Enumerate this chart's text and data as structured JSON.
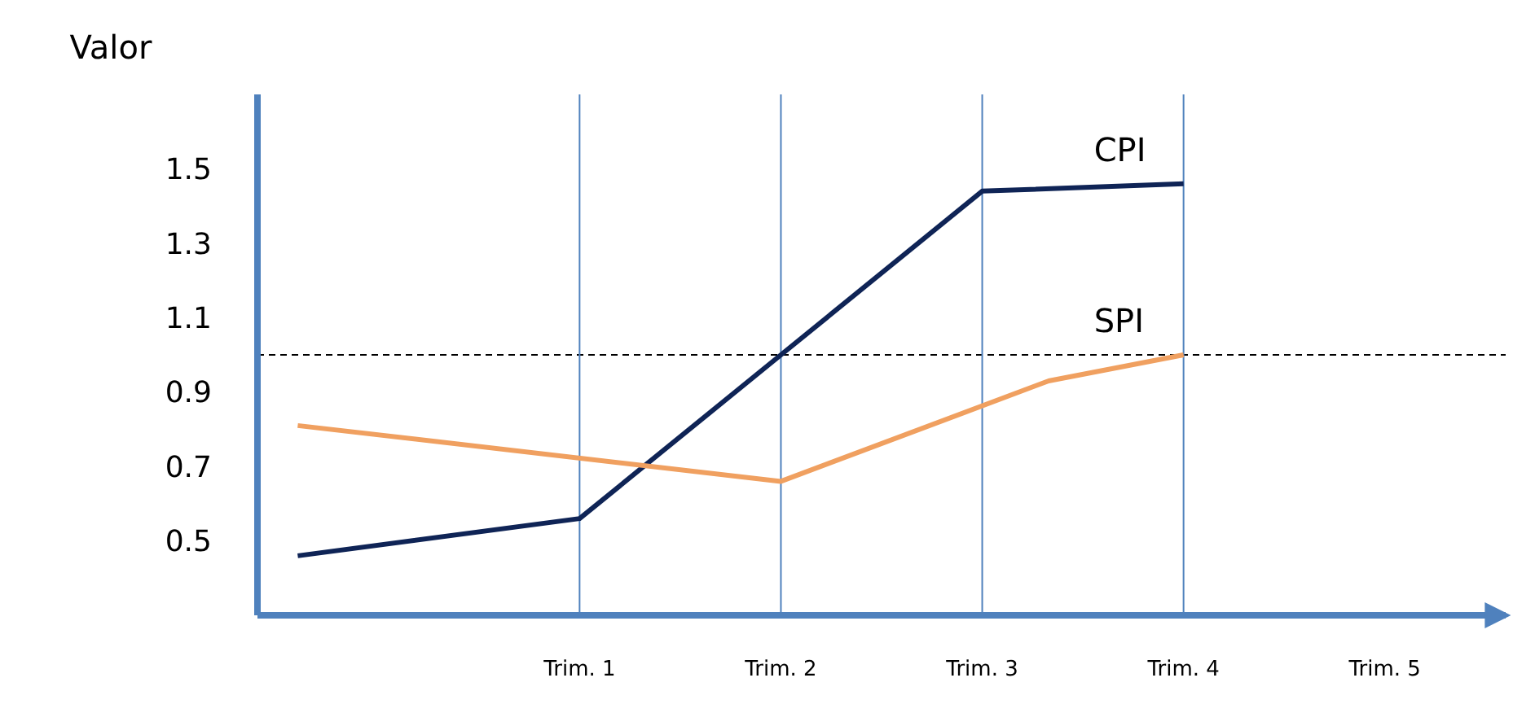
{
  "chart_data": {
    "type": "line",
    "ylabel": "Valor",
    "xlim": [
      -0.6,
      5.6
    ],
    "ylim": [
      0.3,
      1.7
    ],
    "yticks": [
      0.5,
      0.7,
      0.9,
      1.1,
      1.3,
      1.5
    ],
    "xticks": [
      {
        "value": 1,
        "label": "Trim. 1"
      },
      {
        "value": 2,
        "label": "Trim. 2"
      },
      {
        "value": 3,
        "label": "Trim. 3"
      },
      {
        "value": 4,
        "label": "Trim. 4"
      },
      {
        "value": 5,
        "label": "Trim. 5"
      }
    ],
    "series": [
      {
        "name": "CPI",
        "color": "#0f2456",
        "x": [
          -0.4,
          1,
          2,
          3,
          4
        ],
        "values": [
          0.46,
          0.56,
          1.0,
          1.44,
          1.46
        ]
      },
      {
        "name": "SPI",
        "color": "#f0a060",
        "x": [
          -0.4,
          2,
          3.33,
          4
        ],
        "values": [
          0.81,
          0.66,
          0.93,
          1.0
        ]
      }
    ],
    "ref_lines": [
      {
        "axis": "y",
        "value": 1.0,
        "color": "#000000",
        "line_style": "dashed"
      },
      {
        "axis": "x",
        "value": 1,
        "color": "#4f81bd"
      },
      {
        "axis": "x",
        "value": 2,
        "color": "#4f81bd"
      },
      {
        "axis": "x",
        "value": 3,
        "color": "#4f81bd"
      },
      {
        "axis": "x",
        "value": 4,
        "color": "#4f81bd"
      }
    ],
    "grid": false,
    "legend": false,
    "marker": "none",
    "line_style": "solid"
  }
}
